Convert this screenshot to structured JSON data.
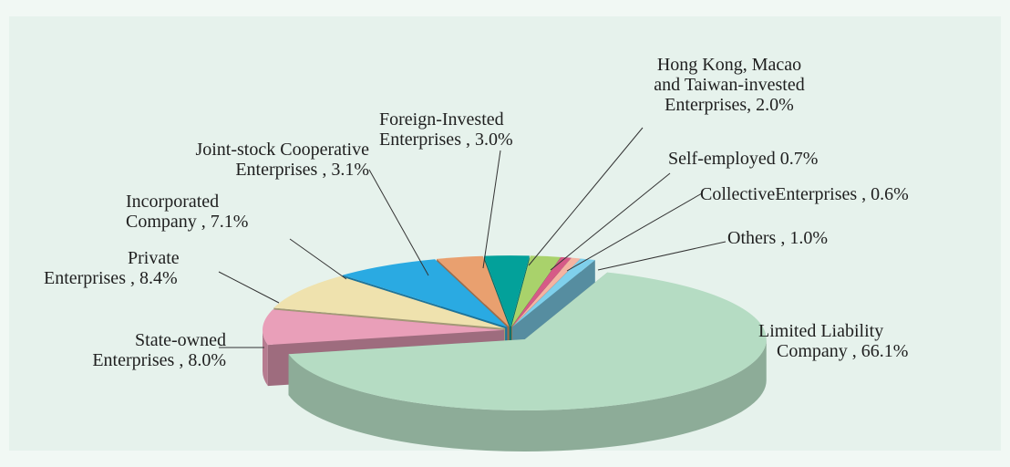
{
  "chart_data": {
    "type": "pie3d",
    "categories": [
      "Limited Liability\nCompany ,",
      "State-owned\nEnterprises ,",
      "Private\nEnterprises ,",
      "Incorporated\nCompany ,",
      "Joint-stock Cooperative\nEnterprises ,",
      "Foreign-Invested\nEnterprises ,",
      "Hong Kong, Macao\nand Taiwan-invested\nEnterprises,",
      "Self-employed",
      "CollectiveEnterprises ,",
      "Others ,"
    ],
    "values": [
      66.1,
      8.0,
      8.4,
      7.1,
      3.1,
      3.0,
      2.0,
      0.7,
      0.6,
      1.0
    ],
    "value_labels": [
      "66.1%",
      "8.0%",
      "8.4%",
      "7.1%",
      "3.1%",
      "3.0%",
      "2.0%",
      "0.7%",
      "0.6%",
      "1.0%"
    ],
    "colors": [
      "#b5dcc3",
      "#e99fb9",
      "#efe2ae",
      "#2aaae2",
      "#e9a06f",
      "#03a19a",
      "#a9d26b",
      "#d65a87",
      "#f4b4a2",
      "#7fd0ec"
    ]
  }
}
